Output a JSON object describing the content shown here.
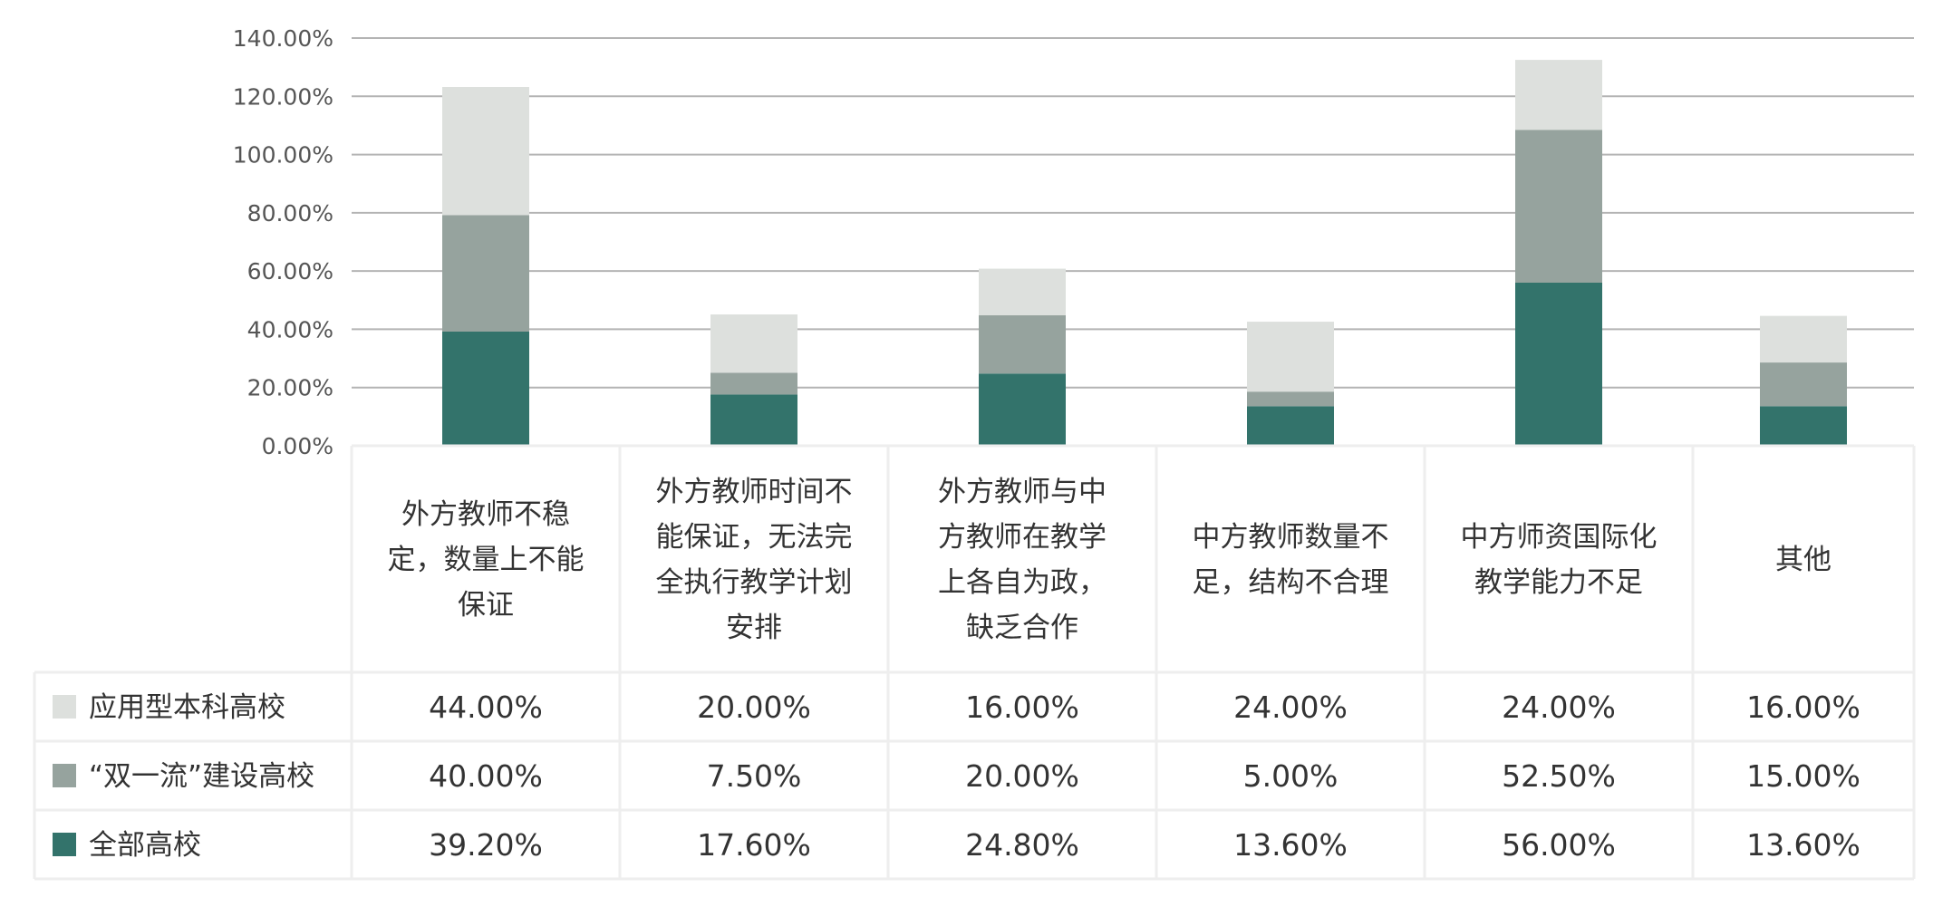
{
  "chart_data": {
    "type": "bar",
    "stacked": true,
    "categories": [
      [
        "外方教师不稳",
        "定，数量上不能",
        "保证"
      ],
      [
        "外方教师时间不",
        "能保证，无法完",
        "全执行教学计划",
        "安排"
      ],
      [
        "外方教师与中",
        "方教师在教学",
        "上各自为政，",
        "缺乏合作"
      ],
      [
        "中方教师数量不",
        "足，结构不合理"
      ],
      [
        "中方师资国际化",
        "教学能力不足"
      ],
      [
        "其他"
      ]
    ],
    "series": [
      {
        "name": "全部高校",
        "color": "#33736b",
        "values": [
          39.2,
          17.6,
          24.8,
          13.6,
          56.0,
          13.6
        ],
        "labels": [
          "39.20%",
          "17.60%",
          "24.80%",
          "13.60%",
          "56.00%",
          "13.60%"
        ]
      },
      {
        "name": "“双一流”建设高校",
        "color": "#96a39e",
        "values": [
          40.0,
          7.5,
          20.0,
          5.0,
          52.5,
          15.0
        ],
        "labels": [
          "40.00%",
          "7.50%",
          "20.00%",
          "5.00%",
          "52.50%",
          "15.00%"
        ]
      },
      {
        "name": "应用型本科高校",
        "color": "#dde0dd",
        "values": [
          44.0,
          20.0,
          16.0,
          24.0,
          24.0,
          16.0
        ],
        "labels": [
          "44.00%",
          "20.00%",
          "16.00%",
          "24.00%",
          "24.00%",
          "16.00%"
        ]
      }
    ],
    "table_row_order": [
      2,
      1,
      0
    ],
    "ylim": [
      0,
      140
    ],
    "yticks": [
      "0.00%",
      "20.00%",
      "40.00%",
      "60.00%",
      "80.00%",
      "100.00%",
      "120.00%",
      "140.00%"
    ],
    "grid": true,
    "legend": "data-table",
    "gridline_color": "#b4b4b4",
    "table_border_color": "#eeeeee"
  }
}
